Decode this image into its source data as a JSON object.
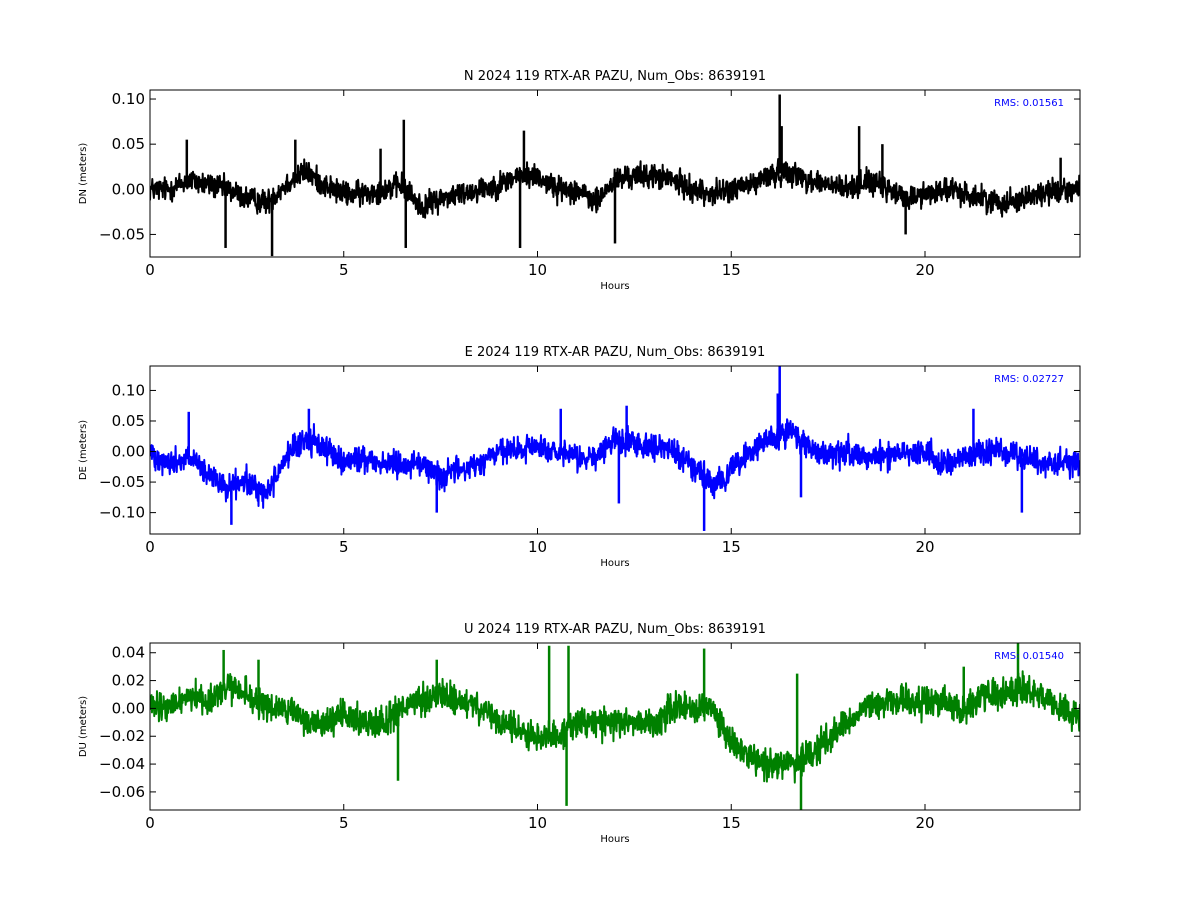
{
  "chart_data": [
    {
      "type": "line",
      "title": "N 2024 119 RTX-AR  PAZU, Num_Obs: 8639191",
      "xlabel": "Hours",
      "ylabel": "DN (meters)",
      "xlim": [
        0,
        24
      ],
      "ylim": [
        -0.075,
        0.11
      ],
      "xticks": [
        0,
        5,
        10,
        15,
        20
      ],
      "xtick_labels": [
        "0",
        "5",
        "10",
        "15",
        "20"
      ],
      "yticks": [
        -0.05,
        0.0,
        0.05,
        0.1
      ],
      "ytick_labels": [
        "−0.05",
        "0.00",
        "0.05",
        "0.10"
      ],
      "color": "#000000",
      "annotation": "RMS:  0.01561",
      "annotation_color": "#0000ff",
      "noise_amplitude": 0.02,
      "series": [
        {
          "x": [
            0,
            0.5,
            1,
            1.5,
            2,
            2.5,
            3,
            3.5,
            4,
            4.5,
            5,
            5.5,
            6,
            6.5,
            7,
            7.5,
            8,
            8.5,
            9,
            9.5,
            10,
            10.5,
            11,
            11.5,
            12,
            12.5,
            13,
            13.5,
            14,
            14.5,
            15,
            15.5,
            16,
            16.5,
            17,
            17.5,
            18,
            18.5,
            19,
            19.5,
            20,
            20.5,
            21,
            21.5,
            22,
            22.5,
            23,
            23.5,
            24
          ],
          "y": [
            0.0,
            0.0,
            0.01,
            0.005,
            0.0,
            -0.01,
            -0.015,
            0.005,
            0.02,
            0.005,
            -0.005,
            -0.005,
            0.0,
            0.005,
            -0.02,
            -0.01,
            -0.005,
            0.0,
            0.005,
            0.015,
            0.015,
            0.0,
            0.0,
            -0.015,
            0.01,
            0.015,
            0.015,
            0.01,
            0.0,
            -0.005,
            0.0,
            0.005,
            0.015,
            0.02,
            0.01,
            0.005,
            0.0,
            0.01,
            0.0,
            -0.01,
            -0.005,
            0.0,
            -0.005,
            -0.01,
            -0.015,
            -0.01,
            -0.005,
            0.0,
            0.0
          ]
        }
      ],
      "spikes": [
        {
          "x": 0.95,
          "y": 0.055
        },
        {
          "x": 1.95,
          "y": -0.065
        },
        {
          "x": 3.15,
          "y": -0.074
        },
        {
          "x": 3.75,
          "y": 0.055
        },
        {
          "x": 5.95,
          "y": 0.045
        },
        {
          "x": 6.55,
          "y": 0.077
        },
        {
          "x": 6.6,
          "y": -0.065
        },
        {
          "x": 9.55,
          "y": -0.065
        },
        {
          "x": 9.65,
          "y": 0.065
        },
        {
          "x": 12.0,
          "y": -0.06
        },
        {
          "x": 16.25,
          "y": 0.105
        },
        {
          "x": 16.3,
          "y": 0.07
        },
        {
          "x": 18.3,
          "y": 0.07
        },
        {
          "x": 18.9,
          "y": 0.05
        },
        {
          "x": 19.5,
          "y": -0.05
        },
        {
          "x": 23.5,
          "y": 0.035
        }
      ]
    },
    {
      "type": "line",
      "title": "E 2024 119 RTX-AR  PAZU, Num_Obs: 8639191",
      "xlabel": "Hours",
      "ylabel": "DE (meters)",
      "xlim": [
        0,
        24
      ],
      "ylim": [
        -0.135,
        0.14
      ],
      "xticks": [
        0,
        5,
        10,
        15,
        20
      ],
      "xtick_labels": [
        "0",
        "5",
        "10",
        "15",
        "20"
      ],
      "yticks": [
        -0.1,
        -0.05,
        0.0,
        0.05,
        0.1
      ],
      "ytick_labels": [
        "−0.10",
        "−0.05",
        "0.00",
        "0.05",
        "0.10"
      ],
      "color": "#0000ff",
      "annotation": "RMS:  0.02727",
      "annotation_color": "#0000ff",
      "noise_amplitude": 0.032,
      "series": [
        {
          "x": [
            0,
            0.5,
            1,
            1.5,
            2,
            2.5,
            3,
            3.5,
            4,
            4.5,
            5,
            5.5,
            6,
            6.5,
            7,
            7.5,
            8,
            8.5,
            9,
            9.5,
            10,
            10.5,
            11,
            11.5,
            12,
            12.5,
            13,
            13.5,
            14,
            14.5,
            15,
            15.5,
            16,
            16.5,
            17,
            17.5,
            18,
            18.5,
            19,
            19.5,
            20,
            20.5,
            21,
            21.5,
            22,
            22.5,
            23,
            23.5,
            24
          ],
          "y": [
            0.0,
            -0.02,
            -0.01,
            -0.04,
            -0.06,
            -0.05,
            -0.07,
            -0.01,
            0.02,
            0.01,
            -0.02,
            -0.01,
            -0.02,
            -0.02,
            -0.02,
            -0.04,
            -0.03,
            -0.02,
            0.0,
            0.0,
            0.01,
            -0.005,
            -0.01,
            -0.01,
            0.02,
            0.015,
            0.01,
            0.0,
            -0.02,
            -0.06,
            -0.03,
            0.0,
            0.02,
            0.03,
            0.01,
            -0.01,
            0.0,
            -0.01,
            -0.005,
            0.0,
            0.0,
            -0.02,
            -0.01,
            0.0,
            0.0,
            -0.01,
            -0.02,
            -0.015,
            -0.02
          ]
        }
      ],
      "spikes": [
        {
          "x": 1.0,
          "y": 0.065
        },
        {
          "x": 2.1,
          "y": -0.12
        },
        {
          "x": 4.1,
          "y": 0.07
        },
        {
          "x": 7.4,
          "y": -0.1
        },
        {
          "x": 10.6,
          "y": 0.07
        },
        {
          "x": 12.1,
          "y": -0.085
        },
        {
          "x": 12.3,
          "y": 0.075
        },
        {
          "x": 14.3,
          "y": -0.13
        },
        {
          "x": 16.25,
          "y": 0.14
        },
        {
          "x": 16.2,
          "y": 0.095
        },
        {
          "x": 16.8,
          "y": -0.075
        },
        {
          "x": 21.25,
          "y": 0.07
        },
        {
          "x": 22.5,
          "y": -0.1
        }
      ]
    },
    {
      "type": "line",
      "title": "U 2024 119 RTX-AR  PAZU, Num_Obs: 8639191",
      "xlabel": "Hours",
      "ylabel": "DU (meters)",
      "xlim": [
        0,
        24
      ],
      "ylim": [
        -0.073,
        0.047
      ],
      "xticks": [
        0,
        5,
        10,
        15,
        20
      ],
      "xtick_labels": [
        "0",
        "5",
        "10",
        "15",
        "20"
      ],
      "yticks": [
        -0.06,
        -0.04,
        -0.02,
        0.0,
        0.02,
        0.04
      ],
      "ytick_labels": [
        "−0.06",
        "−0.04",
        "−0.02",
        "0.00",
        "0.02",
        "0.04"
      ],
      "color": "#008000",
      "annotation": "RMS:  0.01540",
      "annotation_color": "#0000ff",
      "noise_amplitude": 0.016,
      "series": [
        {
          "x": [
            0,
            0.5,
            1,
            1.5,
            2,
            2.5,
            3,
            3.5,
            4,
            4.5,
            5,
            5.5,
            6,
            6.5,
            7,
            7.5,
            8,
            8.5,
            9,
            9.5,
            10,
            10.5,
            11,
            11.5,
            12,
            12.5,
            13,
            13.5,
            14,
            14.5,
            15,
            15.5,
            16,
            16.5,
            17,
            17.5,
            18,
            18.5,
            19,
            19.5,
            20,
            20.5,
            21,
            21.5,
            22,
            22.5,
            23,
            23.5,
            24
          ],
          "y": [
            0.0,
            0.0,
            0.01,
            0.005,
            0.015,
            0.01,
            0.0,
            0.0,
            -0.01,
            -0.01,
            -0.005,
            -0.01,
            -0.01,
            0.0,
            0.005,
            0.01,
            0.005,
            0.0,
            -0.01,
            -0.015,
            -0.02,
            -0.02,
            -0.01,
            -0.01,
            -0.01,
            -0.01,
            -0.01,
            0.0,
            0.0,
            0.0,
            -0.025,
            -0.035,
            -0.04,
            -0.04,
            -0.035,
            -0.02,
            -0.01,
            0.0,
            0.005,
            0.005,
            0.005,
            0.005,
            0.0,
            0.01,
            0.01,
            0.015,
            0.01,
            0.0,
            -0.005
          ]
        }
      ],
      "spikes": [
        {
          "x": 1.9,
          "y": 0.042
        },
        {
          "x": 2.8,
          "y": 0.035
        },
        {
          "x": 6.4,
          "y": -0.052
        },
        {
          "x": 7.4,
          "y": 0.035
        },
        {
          "x": 10.3,
          "y": 0.045
        },
        {
          "x": 10.75,
          "y": -0.07
        },
        {
          "x": 10.8,
          "y": 0.045
        },
        {
          "x": 14.3,
          "y": 0.043
        },
        {
          "x": 16.8,
          "y": -0.073
        },
        {
          "x": 16.7,
          "y": 0.025
        },
        {
          "x": 22.4,
          "y": 0.047
        },
        {
          "x": 21.0,
          "y": 0.03
        }
      ]
    }
  ]
}
